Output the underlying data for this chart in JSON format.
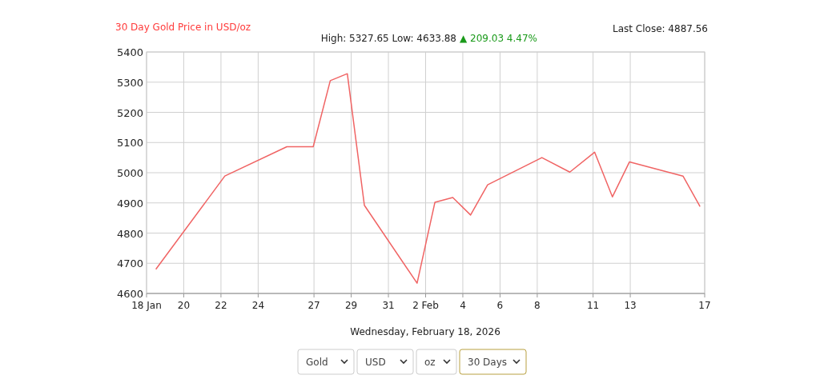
{
  "chart_data": {
    "type": "line",
    "title": "30 Day Gold Price in USD/oz",
    "subtitle": "High: 5327.65 Low: 4633.88",
    "annotations": [
      "Last Close: 4887.56",
      "▲ 209.03 4.47%",
      "Wednesday, February 18, 2026",
      "Gold",
      "USD",
      "oz",
      "30 Days"
    ],
    "x": [
      "2026-01-18T12:00",
      "2026-01-22T05:00",
      "2026-01-25T13:00",
      "2026-01-26T23:00",
      "2026-01-27T21:00",
      "2026-01-28T19:00",
      "2026-01-29T17:00",
      "2026-02-01T13:00",
      "2026-02-02T12:00",
      "2026-02-03T11:00",
      "2026-02-04T10:00",
      "2026-02-05T08:00",
      "2026-02-08T06:00",
      "2026-02-09T18:00",
      "2026-02-11T02:00",
      "2026-02-12T01:00",
      "2026-02-12T23:00",
      "2026-02-15T20:00",
      "2026-02-16T18:00"
    ],
    "series": [
      {
        "color": "#f06464",
        "values": [
          4680,
          4989,
          5086,
          5086,
          5305,
          5328,
          4892,
          4634,
          4902,
          4918,
          4860,
          4960,
          5050,
          5002,
          5068,
          4920,
          5036,
          4989,
          4888
        ]
      }
    ],
    "xlim": [
      "2026-01-18",
      "2026-02-17"
    ],
    "xticks": [
      {
        "value": "2026-01-18",
        "label": "18 Jan"
      },
      {
        "value": "2026-01-20",
        "label": "20"
      },
      {
        "value": "2026-01-22",
        "label": "22"
      },
      {
        "value": "2026-01-24",
        "label": "24"
      },
      {
        "value": "2026-01-27",
        "label": "27"
      },
      {
        "value": "2026-01-29",
        "label": "29"
      },
      {
        "value": "2026-01-31",
        "label": "31"
      },
      {
        "value": "2026-02-02",
        "label": "2 Feb"
      },
      {
        "value": "2026-02-04",
        "label": "4"
      },
      {
        "value": "2026-02-06",
        "label": "6"
      },
      {
        "value": "2026-02-08",
        "label": "8"
      },
      {
        "value": "2026-02-11",
        "label": "11"
      },
      {
        "value": "2026-02-13",
        "label": "13"
      },
      {
        "value": "2026-02-17",
        "label": "17"
      }
    ],
    "ylim": [
      4600,
      5400
    ],
    "yticks": [
      4600,
      4700,
      4800,
      4900,
      5000,
      5100,
      5200,
      5300,
      5400
    ],
    "grid": true,
    "marker": "none",
    "line_style": "solid"
  }
}
